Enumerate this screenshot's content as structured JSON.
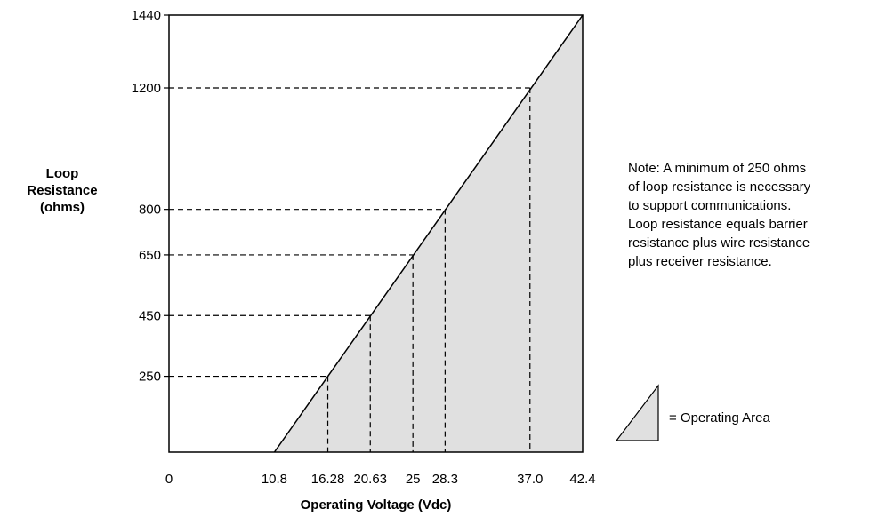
{
  "chart_data": {
    "type": "area",
    "title": "",
    "xlabel": "Operating Voltage (Vdc)",
    "ylabel_lines": [
      "Loop",
      "Resistance",
      "(ohms)"
    ],
    "xlim": [
      0,
      42.4
    ],
    "ylim": [
      0,
      1440
    ],
    "x_tick_labels": [
      "0",
      "10.8",
      "16.28",
      "20.63",
      "25",
      "28.3",
      "37.0",
      "42.4"
    ],
    "x_ticks": [
      0,
      10.8,
      16.28,
      20.63,
      25,
      28.3,
      37.0,
      42.4
    ],
    "y_tick_labels": [
      "250",
      "450",
      "650",
      "800",
      "1200",
      "1440"
    ],
    "y_ticks": [
      250,
      450,
      650,
      800,
      1200,
      1440
    ],
    "boundary_line": {
      "x": [
        10.8,
        42.4
      ],
      "y": [
        0,
        1440
      ]
    },
    "reference_points": [
      {
        "x": 16.28,
        "y": 250
      },
      {
        "x": 20.63,
        "y": 450
      },
      {
        "x": 25,
        "y": 650
      },
      {
        "x": 28.3,
        "y": 800
      },
      {
        "x": 37.0,
        "y": 1200
      }
    ],
    "fill_color": "#e0e0e0",
    "line_color": "#000000",
    "grid": false,
    "legend": {
      "label": "= Operating Area",
      "position": "bottom-right"
    }
  },
  "note_lines": [
    "Note: A minimum of 250 ohms",
    "of loop resistance is necessary",
    "to support communications.",
    "Loop resistance equals barrier",
    "resistance plus wire resistance",
    "plus receiver resistance."
  ]
}
